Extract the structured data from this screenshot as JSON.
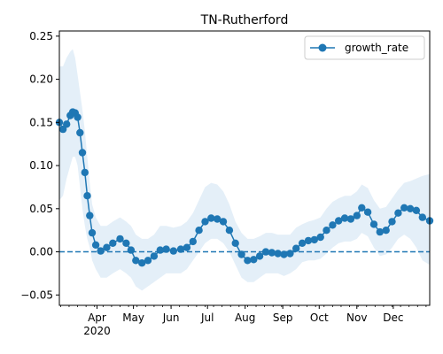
{
  "chart_data": {
    "type": "line",
    "title": "TN-Rutherford",
    "xlabel": "",
    "ylabel": "",
    "x_range": [
      "2020-03-01",
      "2020-12-31"
    ],
    "ylim": [
      -0.062,
      0.256
    ],
    "y_ticks": [
      -0.05,
      0.0,
      0.05,
      0.1,
      0.15,
      0.2,
      0.25
    ],
    "y_tick_labels": [
      "−0.05",
      "0.00",
      "0.05",
      "0.10",
      "0.15",
      "0.20",
      "0.25"
    ],
    "x_ticks": [
      {
        "date": "2020-04-01",
        "label": "Apr",
        "sublabel": "2020"
      },
      {
        "date": "2020-05-01",
        "label": "May",
        "sublabel": ""
      },
      {
        "date": "2020-06-01",
        "label": "Jun",
        "sublabel": ""
      },
      {
        "date": "2020-07-01",
        "label": "Jul",
        "sublabel": ""
      },
      {
        "date": "2020-08-01",
        "label": "Aug",
        "sublabel": ""
      },
      {
        "date": "2020-09-01",
        "label": "Sep",
        "sublabel": ""
      },
      {
        "date": "2020-10-01",
        "label": "Oct",
        "sublabel": ""
      },
      {
        "date": "2020-11-01",
        "label": "Nov",
        "sublabel": ""
      },
      {
        "date": "2020-12-01",
        "label": "Dec",
        "sublabel": ""
      }
    ],
    "reference_line": {
      "y": 0.0,
      "style": "dashed",
      "color": "#1f77b4"
    },
    "legend": {
      "placement": "top-right",
      "entries": [
        "growth_rate"
      ]
    },
    "colors": {
      "series": "#1f77b4",
      "band": "#dbe9f6"
    },
    "grid": false,
    "series": [
      {
        "name": "growth_rate",
        "marker": "circle",
        "points": [
          {
            "date": "2020-03-01",
            "y": 0.15,
            "lo": 0.06,
            "hi": 0.215
          },
          {
            "date": "2020-03-04",
            "y": 0.142,
            "lo": 0.065,
            "hi": 0.215
          },
          {
            "date": "2020-03-07",
            "y": 0.148,
            "lo": 0.085,
            "hi": 0.225
          },
          {
            "date": "2020-03-10",
            "y": 0.158,
            "lo": 0.1,
            "hi": 0.232
          },
          {
            "date": "2020-03-12",
            "y": 0.162,
            "lo": 0.11,
            "hi": 0.235
          },
          {
            "date": "2020-03-14",
            "y": 0.161,
            "lo": 0.11,
            "hi": 0.225
          },
          {
            "date": "2020-03-16",
            "y": 0.156,
            "lo": 0.1,
            "hi": 0.205
          },
          {
            "date": "2020-03-18",
            "y": 0.138,
            "lo": 0.075,
            "hi": 0.185
          },
          {
            "date": "2020-03-20",
            "y": 0.115,
            "lo": 0.05,
            "hi": 0.165
          },
          {
            "date": "2020-03-22",
            "y": 0.092,
            "lo": 0.03,
            "hi": 0.14
          },
          {
            "date": "2020-03-24",
            "y": 0.065,
            "lo": 0.015,
            "hi": 0.11
          },
          {
            "date": "2020-03-26",
            "y": 0.042,
            "lo": 0.005,
            "hi": 0.08
          },
          {
            "date": "2020-03-28",
            "y": 0.022,
            "lo": -0.01,
            "hi": 0.055
          },
          {
            "date": "2020-03-31",
            "y": 0.008,
            "lo": -0.02,
            "hi": 0.04
          },
          {
            "date": "2020-04-04",
            "y": 0.001,
            "lo": -0.03,
            "hi": 0.03
          },
          {
            "date": "2020-04-09",
            "y": 0.005,
            "lo": -0.03,
            "hi": 0.03
          },
          {
            "date": "2020-04-14",
            "y": 0.01,
            "lo": -0.025,
            "hi": 0.035
          },
          {
            "date": "2020-04-20",
            "y": 0.015,
            "lo": -0.02,
            "hi": 0.04
          },
          {
            "date": "2020-04-25",
            "y": 0.01,
            "lo": -0.025,
            "hi": 0.035
          },
          {
            "date": "2020-04-29",
            "y": 0.002,
            "lo": -0.03,
            "hi": 0.03
          },
          {
            "date": "2020-05-03",
            "y": -0.01,
            "lo": -0.04,
            "hi": 0.02
          },
          {
            "date": "2020-05-08",
            "y": -0.013,
            "lo": -0.045,
            "hi": 0.015
          },
          {
            "date": "2020-05-13",
            "y": -0.01,
            "lo": -0.04,
            "hi": 0.015
          },
          {
            "date": "2020-05-18",
            "y": -0.005,
            "lo": -0.035,
            "hi": 0.02
          },
          {
            "date": "2020-05-23",
            "y": 0.002,
            "lo": -0.03,
            "hi": 0.03
          },
          {
            "date": "2020-05-28",
            "y": 0.003,
            "lo": -0.025,
            "hi": 0.03
          },
          {
            "date": "2020-06-03",
            "y": 0.001,
            "lo": -0.025,
            "hi": 0.028
          },
          {
            "date": "2020-06-09",
            "y": 0.003,
            "lo": -0.025,
            "hi": 0.03
          },
          {
            "date": "2020-06-14",
            "y": 0.005,
            "lo": -0.02,
            "hi": 0.035
          },
          {
            "date": "2020-06-19",
            "y": 0.012,
            "lo": -0.01,
            "hi": 0.045
          },
          {
            "date": "2020-06-24",
            "y": 0.025,
            "lo": 0.0,
            "hi": 0.06
          },
          {
            "date": "2020-06-29",
            "y": 0.035,
            "lo": 0.01,
            "hi": 0.075
          },
          {
            "date": "2020-07-04",
            "y": 0.039,
            "lo": 0.015,
            "hi": 0.08
          },
          {
            "date": "2020-07-09",
            "y": 0.038,
            "lo": 0.015,
            "hi": 0.078
          },
          {
            "date": "2020-07-14",
            "y": 0.035,
            "lo": 0.01,
            "hi": 0.07
          },
          {
            "date": "2020-07-19",
            "y": 0.025,
            "lo": 0.0,
            "hi": 0.055
          },
          {
            "date": "2020-07-24",
            "y": 0.01,
            "lo": -0.015,
            "hi": 0.035
          },
          {
            "date": "2020-07-29",
            "y": -0.003,
            "lo": -0.03,
            "hi": 0.022
          },
          {
            "date": "2020-08-03",
            "y": -0.01,
            "lo": -0.035,
            "hi": 0.015
          },
          {
            "date": "2020-08-08",
            "y": -0.009,
            "lo": -0.035,
            "hi": 0.015
          },
          {
            "date": "2020-08-13",
            "y": -0.005,
            "lo": -0.03,
            "hi": 0.018
          },
          {
            "date": "2020-08-18",
            "y": 0.0,
            "lo": -0.025,
            "hi": 0.022
          },
          {
            "date": "2020-08-23",
            "y": -0.001,
            "lo": -0.025,
            "hi": 0.022
          },
          {
            "date": "2020-08-28",
            "y": -0.002,
            "lo": -0.025,
            "hi": 0.02
          },
          {
            "date": "2020-09-02",
            "y": -0.003,
            "lo": -0.028,
            "hi": 0.02
          },
          {
            "date": "2020-09-07",
            "y": -0.002,
            "lo": -0.025,
            "hi": 0.02
          },
          {
            "date": "2020-09-12",
            "y": 0.004,
            "lo": -0.02,
            "hi": 0.028
          },
          {
            "date": "2020-09-17",
            "y": 0.01,
            "lo": -0.012,
            "hi": 0.032
          },
          {
            "date": "2020-09-22",
            "y": 0.013,
            "lo": -0.01,
            "hi": 0.035
          },
          {
            "date": "2020-09-27",
            "y": 0.014,
            "lo": -0.01,
            "hi": 0.037
          },
          {
            "date": "2020-10-02",
            "y": 0.017,
            "lo": -0.008,
            "hi": 0.04
          },
          {
            "date": "2020-10-07",
            "y": 0.025,
            "lo": -0.002,
            "hi": 0.05
          },
          {
            "date": "2020-10-12",
            "y": 0.031,
            "lo": 0.005,
            "hi": 0.058
          },
          {
            "date": "2020-10-17",
            "y": 0.036,
            "lo": 0.01,
            "hi": 0.062
          },
          {
            "date": "2020-10-22",
            "y": 0.039,
            "lo": 0.012,
            "hi": 0.065
          },
          {
            "date": "2020-10-27",
            "y": 0.038,
            "lo": 0.012,
            "hi": 0.065
          },
          {
            "date": "2020-11-01",
            "y": 0.042,
            "lo": 0.015,
            "hi": 0.07
          },
          {
            "date": "2020-11-05",
            "y": 0.051,
            "lo": 0.022,
            "hi": 0.078
          },
          {
            "date": "2020-11-10",
            "y": 0.046,
            "lo": 0.018,
            "hi": 0.074
          },
          {
            "date": "2020-11-15",
            "y": 0.032,
            "lo": 0.005,
            "hi": 0.06
          },
          {
            "date": "2020-11-20",
            "y": 0.023,
            "lo": -0.005,
            "hi": 0.05
          },
          {
            "date": "2020-11-25",
            "y": 0.025,
            "lo": -0.003,
            "hi": 0.052
          },
          {
            "date": "2020-11-30",
            "y": 0.035,
            "lo": 0.005,
            "hi": 0.062
          },
          {
            "date": "2020-12-05",
            "y": 0.045,
            "lo": 0.015,
            "hi": 0.072
          },
          {
            "date": "2020-12-10",
            "y": 0.051,
            "lo": 0.02,
            "hi": 0.08
          },
          {
            "date": "2020-12-15",
            "y": 0.05,
            "lo": 0.015,
            "hi": 0.082
          },
          {
            "date": "2020-12-20",
            "y": 0.048,
            "lo": 0.005,
            "hi": 0.085
          },
          {
            "date": "2020-12-25",
            "y": 0.04,
            "lo": -0.01,
            "hi": 0.088
          },
          {
            "date": "2020-12-31",
            "y": 0.036,
            "lo": -0.015,
            "hi": 0.09
          }
        ]
      }
    ]
  }
}
